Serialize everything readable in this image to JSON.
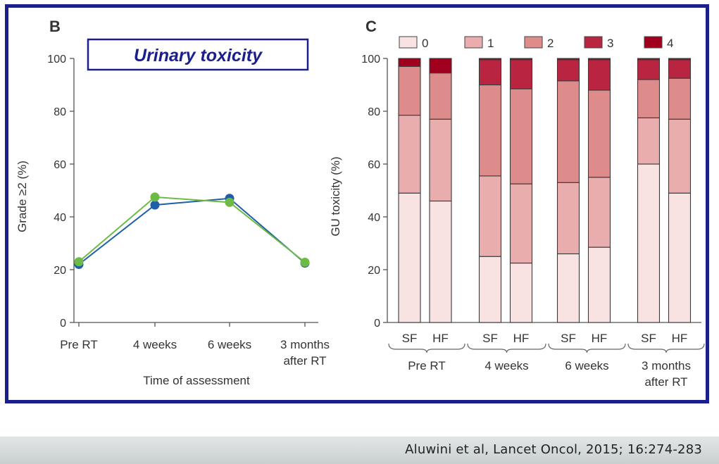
{
  "citation": "Aluwini et al, Lancet Oncol, 2015; 16:274-283",
  "chart_data": [
    {
      "panel": "B",
      "type": "line",
      "title": "Urinary toxicity",
      "xlabel": "Time of assessment",
      "ylabel": "Grade ≥2 (%)",
      "ylim": [
        0,
        100
      ],
      "yticks": [
        0,
        20,
        40,
        60,
        80,
        100
      ],
      "categories": [
        "Pre RT",
        "4 weeks",
        "6 weeks",
        "3 months after RT"
      ],
      "series": [
        {
          "color": "#1f5fa8",
          "values": [
            22,
            44.5,
            47,
            22.5
          ]
        },
        {
          "color": "#6dbb45",
          "values": [
            23,
            47.5,
            45.5,
            22.8
          ]
        }
      ]
    },
    {
      "panel": "C",
      "type": "bar",
      "stacked": true,
      "ylabel": "GU toxicity (%)",
      "ylim": [
        0,
        100
      ],
      "yticks": [
        0,
        20,
        40,
        60,
        80,
        100
      ],
      "legend_position": "top",
      "groups": [
        "Pre RT",
        "4 weeks",
        "6 weeks",
        "3 months after RT"
      ],
      "bar_labels": [
        "SF",
        "HF"
      ],
      "series": [
        {
          "name": "0",
          "color": "#f8e2e2",
          "values": [
            49,
            46,
            25,
            22.5,
            26,
            28.5,
            60,
            49
          ]
        },
        {
          "name": "1",
          "color": "#e9adad",
          "values": [
            29.5,
            31,
            30.5,
            30,
            27,
            26.5,
            17.5,
            28
          ]
        },
        {
          "name": "2",
          "color": "#dd8b8b",
          "values": [
            18.5,
            17.5,
            34.5,
            36,
            38.5,
            33,
            14.5,
            15.5
          ]
        },
        {
          "name": "3",
          "color": "#b92540",
          "values": [
            0,
            0,
            9.5,
            11,
            8,
            11.5,
            7.5,
            7
          ]
        },
        {
          "name": "4",
          "color": "#a0001e",
          "values": [
            3,
            5.5,
            0.5,
            0.5,
            0.5,
            0.5,
            0.5,
            0.5
          ]
        }
      ]
    }
  ]
}
